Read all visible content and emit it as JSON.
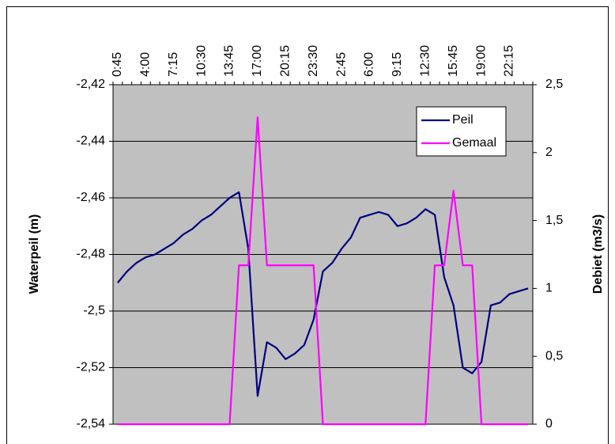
{
  "chart_data": {
    "type": "line",
    "categories": [
      "0:45",
      null,
      null,
      "4:00",
      null,
      null,
      "7:15",
      null,
      null,
      "10:30",
      null,
      null,
      "13:45",
      null,
      null,
      "17:00",
      null,
      null,
      "20:15",
      null,
      null,
      "23:30",
      null,
      null,
      "2:45",
      null,
      null,
      "6:00",
      null,
      null,
      "9:15",
      null,
      null,
      "12:30",
      null,
      null,
      "15:45",
      null,
      null,
      "19:00",
      null,
      null,
      "22:15",
      null,
      null
    ],
    "series": [
      {
        "name": "Peil",
        "color": "#000080",
        "values": [
          -2.49,
          -2.486,
          -2.483,
          -2.481,
          -2.48,
          -2.478,
          -2.476,
          -2.473,
          -2.471,
          -2.468,
          -2.466,
          -2.463,
          -2.46,
          -2.458,
          -2.478,
          -2.53,
          -2.511,
          -2.513,
          -2.517,
          -2.515,
          -2.512,
          -2.503,
          -2.486,
          -2.483,
          -2.478,
          -2.474,
          -2.467,
          -2.466,
          -2.465,
          -2.466,
          -2.47,
          -2.469,
          -2.467,
          -2.464,
          -2.466,
          -2.488,
          -2.498,
          -2.52,
          -2.522,
          -2.518,
          -2.498,
          -2.497,
          -2.494,
          -2.493,
          -2.492
        ]
      },
      {
        "name": "Gemaal",
        "color": "#ff00ff",
        "axis": "y2",
        "values": [
          0,
          0,
          0,
          0,
          0,
          0,
          0,
          0,
          0,
          0,
          0,
          0,
          0,
          1.17,
          1.17,
          2.26,
          1.17,
          1.17,
          1.17,
          1.17,
          1.17,
          1.17,
          0,
          0,
          0,
          0,
          0,
          0,
          0,
          0,
          0,
          0,
          0,
          0,
          1.17,
          1.17,
          1.72,
          1.17,
          1.17,
          0,
          0,
          0,
          0,
          0,
          0
        ]
      }
    ],
    "ylabel": "Waterpeil (m)",
    "y2label": "Debiet (m3/s)",
    "ylim": [
      -2.54,
      -2.42
    ],
    "yticks": [
      {
        "value": -2.54,
        "label": "-2,54"
      },
      {
        "value": -2.52,
        "label": "-2,52"
      },
      {
        "value": -2.5,
        "label": "-2,5"
      },
      {
        "value": -2.48,
        "label": "-2,48"
      },
      {
        "value": -2.46,
        "label": "-2,46"
      },
      {
        "value": -2.44,
        "label": "-2,44"
      },
      {
        "value": -2.42,
        "label": "-2,42"
      }
    ],
    "y2lim": [
      0,
      2.5
    ],
    "y2ticks": [
      0,
      {
        "value": 0.5,
        "label": "0,5"
      },
      1,
      {
        "value": 1.5,
        "label": "1,5"
      },
      2,
      {
        "value": 2.5,
        "label": "2,5"
      }
    ],
    "grid": true,
    "legend": "upper right",
    "plot_background": "#c0c0c0"
  }
}
